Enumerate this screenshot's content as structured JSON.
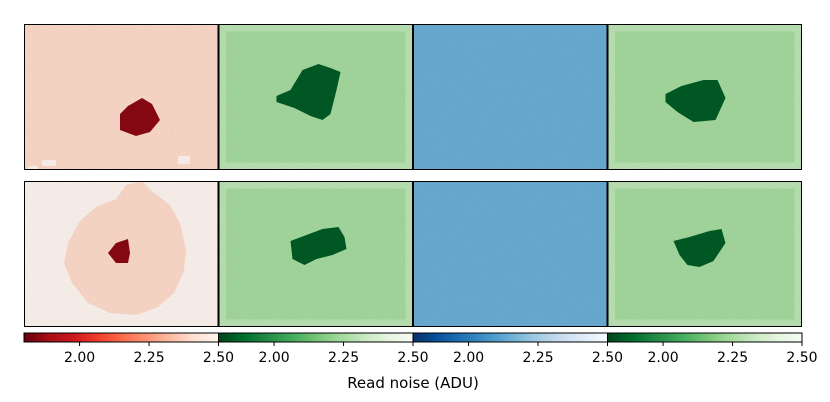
{
  "chart_data": {
    "type": "heatmap",
    "title": "",
    "xlabel": "Read noise (ADU)",
    "grid": false,
    "layout": "2 rows x 4 columns of noise maps, one colorbar per column",
    "panels": [
      {
        "row": 1,
        "col": 1,
        "colormap": "Reds_r",
        "background_value": 2.4,
        "feature_value": 1.85,
        "feature": "small dark blob, light specks along bottom edge"
      },
      {
        "row": 1,
        "col": 2,
        "colormap": "Greens_r",
        "background_value": 2.25,
        "border_value": 2.3,
        "feature_value": 1.85,
        "feature": "dark irregular blob"
      },
      {
        "row": 1,
        "col": 3,
        "colormap": "Blues_r",
        "background_value": 2.15,
        "feature": "uniform"
      },
      {
        "row": 1,
        "col": 4,
        "colormap": "Greens_r",
        "background_value": 2.25,
        "border_value": 2.3,
        "feature_value": 1.85,
        "feature": "dark blob"
      },
      {
        "row": 2,
        "col": 1,
        "colormap": "Reds_r",
        "background_value": 2.5,
        "ring_value": 2.4,
        "feature_value": 1.85,
        "feature": "large round region with dark center"
      },
      {
        "row": 2,
        "col": 2,
        "colormap": "Greens_r",
        "background_value": 2.25,
        "border_value": 2.3,
        "feature_value": 1.85,
        "feature": "dark blob"
      },
      {
        "row": 2,
        "col": 3,
        "colormap": "Blues_r",
        "background_value": 2.15,
        "feature": "uniform"
      },
      {
        "row": 2,
        "col": 4,
        "colormap": "Greens_r",
        "background_value": 2.25,
        "border_value": 2.3,
        "feature_value": 1.85,
        "feature": "dark blob"
      }
    ],
    "colorbars": [
      {
        "colormap": "Reds_r",
        "range": [
          1.8,
          2.5
        ],
        "ticks": [
          "2.00",
          "2.25",
          "2.50"
        ]
      },
      {
        "colormap": "Greens_r",
        "range": [
          1.8,
          2.5
        ],
        "ticks": [
          "2.00",
          "2.25",
          "2.50"
        ]
      },
      {
        "colormap": "Blues_r",
        "range": [
          1.8,
          2.5
        ],
        "ticks": [
          "2.00",
          "2.25",
          "2.50"
        ]
      },
      {
        "colormap": "Greens_r",
        "range": [
          1.8,
          2.5
        ],
        "ticks": [
          "2.00",
          "2.25",
          "2.50"
        ]
      }
    ],
    "colormaps": {
      "Reds_r": [
        "#67000d",
        "#a50f15",
        "#cb181d",
        "#ef3b2c",
        "#fb6a4a",
        "#fc9272",
        "#fcbba1",
        "#fee0d2",
        "#fff5f0"
      ],
      "Greens_r": [
        "#00441b",
        "#006d2c",
        "#238b45",
        "#41ab5d",
        "#74c476",
        "#a1d99b",
        "#c7e9c0",
        "#e5f5e0",
        "#f7fcf5"
      ],
      "Blues_r": [
        "#08306b",
        "#08519c",
        "#2171b5",
        "#4292c6",
        "#6baed6",
        "#9ecae1",
        "#c6dbef",
        "#deebf7",
        "#f7fbff"
      ]
    }
  }
}
